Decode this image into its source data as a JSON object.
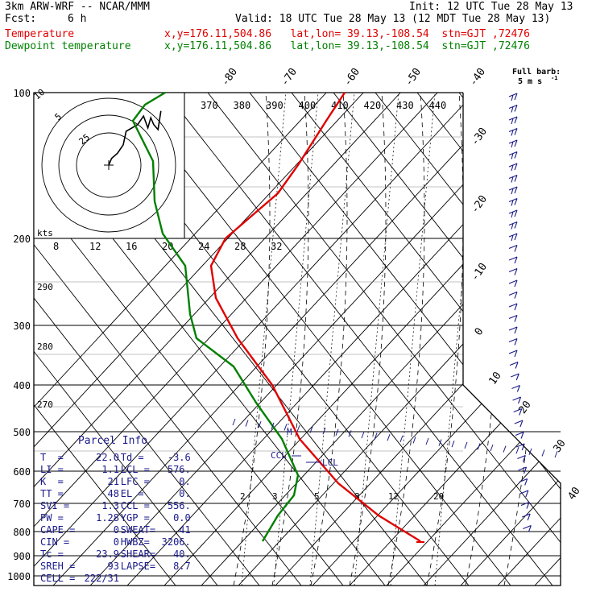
{
  "header": {
    "model": "3km ARW-WRF -- NCAR/MMM",
    "init": "Init: 12 UTC Tue 28 May 13",
    "fcst_label": "Fcst:",
    "fcst_value": "6 h",
    "valid": "Valid: 18 UTC Tue 28 May 13 (12 MDT Tue 28 May 13)",
    "temp_label": "Temperature",
    "temp_loc": "x,y=176.11,504.86   lat,lon= 39.13,-108.54  stn=GJT ,72476",
    "dew_label": "Dewpoint temperature",
    "dew_loc": "x,y=176.11,504.86   lat,lon= 39.13,-108.54  stn=GJT ,72476"
  },
  "colors": {
    "temperature": "#e00000",
    "dewpoint": "#008000",
    "text": "#1a1a8c"
  },
  "barb_legend": {
    "line1": "Full barb:",
    "line2": "5 m s",
    "exp": "-1"
  },
  "hodograph": {
    "kts_label": "kts",
    "rings": [
      "5",
      "10",
      "25"
    ],
    "trace": [
      [
        0,
        0
      ],
      [
        2,
        4
      ],
      [
        6,
        7
      ],
      [
        10,
        12
      ],
      [
        12,
        20
      ],
      [
        20,
        24
      ],
      [
        24,
        29
      ],
      [
        27,
        22
      ],
      [
        29,
        28
      ],
      [
        31,
        24
      ],
      [
        34,
        21
      ],
      [
        36,
        32
      ]
    ]
  },
  "parcel_info": {
    "title": "Parcel Info",
    "rows": [
      {
        "l1": "T  =",
        "v1": "22.0",
        "l2": "Td =",
        "v2": "-3.6"
      },
      {
        "l1": "LI =",
        "v1": "1.1",
        "l2": "LCL =",
        "v2": "576."
      },
      {
        "l1": "K  =",
        "v1": "21",
        "l2": "LFC =",
        "v2": "0."
      },
      {
        "l1": "TT =",
        "v1": "48",
        "l2": "EL =",
        "v2": "0."
      },
      {
        "l1": "SVI =",
        "v1": "1.3",
        "l2": "CCL =",
        "v2": "556."
      },
      {
        "l1": "PW =",
        "v1": "1.28",
        "l2": "YGP =",
        "v2": "0.0"
      },
      {
        "l1": "CAPE =",
        "v1": "0",
        "l2": "SWEAT=",
        "v2": "41"
      },
      {
        "l1": "CIN =",
        "v1": "0",
        "l2": "HWBZ=",
        "v2": "3206."
      },
      {
        "l1": "Tc =",
        "v1": "23.9",
        "l2": "SHEAR=",
        "v2": "40."
      },
      {
        "l1": "SREH =",
        "v1": "93",
        "l2": "LAPSE=",
        "v2": "8.7"
      },
      {
        "l1": "CELL =",
        "v1": "222/31",
        "l2": "",
        "v2": ""
      }
    ]
  },
  "chart_data": {
    "type": "line",
    "pressure_ticks": [
      "100",
      "200",
      "300",
      "400",
      "500",
      "600",
      "700",
      "800",
      "900",
      "1000"
    ],
    "temp_ticks": [
      "-80",
      "-70",
      "-60",
      "-50",
      "-40",
      "-30",
      "-20",
      "-10",
      "0",
      "10",
      "20",
      "30",
      "40"
    ],
    "theta_ticks": [
      "370",
      "380",
      "390",
      "400",
      "410",
      "420",
      "430",
      "440"
    ],
    "mixing_ticks": [
      "8",
      "12",
      "16",
      "20",
      "24",
      "28",
      "32"
    ],
    "lower_mixing_ticks": [
      "2",
      "3",
      "5",
      "8",
      "12",
      "20"
    ],
    "left_theta_ticks": [
      "290",
      "280",
      "270"
    ],
    "markers": {
      "lcl": "LCL",
      "ccl": "CCL",
      "m": "M"
    },
    "series": [
      {
        "name": "Temperature",
        "points": [
          [
            100,
            -59
          ],
          [
            150,
            -59
          ],
          [
            200,
            -53
          ],
          [
            250,
            -46
          ],
          [
            300,
            -37
          ],
          [
            400,
            -24
          ],
          [
            500,
            -14
          ],
          [
            600,
            -5
          ],
          [
            700,
            3
          ],
          [
            800,
            12
          ],
          [
            840,
            19
          ]
        ]
      },
      {
        "name": "Dewpoint temperature",
        "points": [
          [
            100,
            -95
          ],
          [
            130,
            -100
          ],
          [
            170,
            -93
          ],
          [
            200,
            -89
          ],
          [
            250,
            -87
          ],
          [
            300,
            -77
          ],
          [
            400,
            -53
          ],
          [
            500,
            -37
          ],
          [
            600,
            -18
          ],
          [
            700,
            -14
          ],
          [
            800,
            -6
          ],
          [
            840,
            -4
          ]
        ]
      }
    ]
  }
}
